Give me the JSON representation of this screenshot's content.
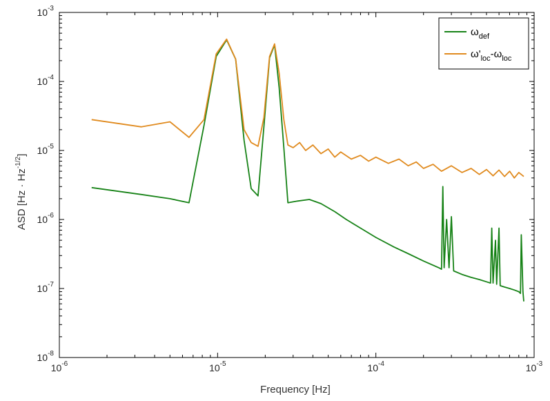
{
  "chart_data": {
    "type": "line",
    "xlabel": "Frequency [Hz]",
    "ylabel": {
      "main": "ASD [Hz · Hz",
      "exp": "-1/2",
      "close": "]"
    },
    "x_scale": "log",
    "y_scale": "log",
    "xlim": [
      1e-06,
      0.001
    ],
    "ylim": [
      1e-08,
      0.001
    ],
    "grid": false,
    "legend_position": "top-right",
    "x_ticks": [
      {
        "base": "10",
        "exp": "-6",
        "value": 1e-06
      },
      {
        "base": "10",
        "exp": "-5",
        "value": 1e-05
      },
      {
        "base": "10",
        "exp": "-4",
        "value": 0.0001
      },
      {
        "base": "10",
        "exp": "-3",
        "value": 0.001
      }
    ],
    "y_ticks": [
      {
        "base": "10",
        "exp": "-8",
        "value": 1e-08
      },
      {
        "base": "10",
        "exp": "-7",
        "value": 1e-07
      },
      {
        "base": "10",
        "exp": "-6",
        "value": 1e-06
      },
      {
        "base": "10",
        "exp": "-5",
        "value": 1e-05
      },
      {
        "base": "10",
        "exp": "-4",
        "value": 0.0001
      },
      {
        "base": "10",
        "exp": "-3",
        "value": 0.001
      }
    ],
    "series": [
      {
        "name": "ω_def",
        "legend": {
          "main": "ω",
          "sub": "def"
        },
        "color": "#168216",
        "points": [
          [
            1.6e-06,
            2.9e-06
          ],
          [
            3.3e-06,
            2.3e-06
          ],
          [
            5e-06,
            2e-06
          ],
          [
            6.6e-06,
            1.75e-06
          ],
          [
            8.2e-06,
            2.3e-05
          ],
          [
            9.8e-06,
            0.00023
          ],
          [
            1.14e-05,
            0.0004
          ],
          [
            1.3e-05,
            0.00021
          ],
          [
            1.47e-05,
            1.4e-05
          ],
          [
            1.63e-05,
            2.8e-06
          ],
          [
            1.8e-05,
            2.2e-06
          ],
          [
            1.96e-05,
            2.2e-05
          ],
          [
            2.13e-05,
            0.00022
          ],
          [
            2.29e-05,
            0.00034
          ],
          [
            2.45e-05,
            8e-05
          ],
          [
            2.62e-05,
            1.1e-05
          ],
          [
            2.78e-05,
            1.75e-06
          ],
          [
            3.2e-05,
            1.85e-06
          ],
          [
            3.8e-05,
            1.95e-06
          ],
          [
            4.5e-05,
            1.7e-06
          ],
          [
            5.5e-05,
            1.3e-06
          ],
          [
            6.5e-05,
            1e-06
          ],
          [
            8e-05,
            7.5e-07
          ],
          [
            0.0001,
            5.5e-07
          ],
          [
            0.00013,
            4e-07
          ],
          [
            0.00016,
            3.2e-07
          ],
          [
            0.0002,
            2.5e-07
          ],
          [
            0.00025,
            2e-07
          ],
          [
            0.00026,
            1.9e-07
          ],
          [
            0.000265,
            3e-06
          ],
          [
            0.00027,
            2e-07
          ],
          [
            0.00028,
            1e-06
          ],
          [
            0.00029,
            2e-07
          ],
          [
            0.0003,
            1.1e-06
          ],
          [
            0.00031,
            1.8e-07
          ],
          [
            0.00035,
            1.6e-07
          ],
          [
            0.0004,
            1.45e-07
          ],
          [
            0.00045,
            1.35e-07
          ],
          [
            0.0005,
            1.25e-07
          ],
          [
            0.00053,
            1.2e-07
          ],
          [
            0.00054,
            7.5e-07
          ],
          [
            0.00055,
            1.2e-07
          ],
          [
            0.00057,
            5e-07
          ],
          [
            0.00058,
            1.15e-07
          ],
          [
            0.0006,
            7.5e-07
          ],
          [
            0.00061,
            1.1e-07
          ],
          [
            0.00065,
            1.05e-07
          ],
          [
            0.0007,
            1e-07
          ],
          [
            0.00075,
            9.5e-08
          ],
          [
            0.0008,
            9e-08
          ],
          [
            0.00082,
            8.5e-08
          ],
          [
            0.00083,
            6e-07
          ],
          [
            0.00085,
            9e-08
          ],
          [
            0.00086,
            6.5e-08
          ]
        ]
      },
      {
        "name": "ω'_loc-ω_loc",
        "legend": {
          "main1": "ω'",
          "sub1": "loc",
          "mid": "-ω",
          "sub2": "loc"
        },
        "color": "#e08a1e",
        "points": [
          [
            1.6e-06,
            2.8e-05
          ],
          [
            3.3e-06,
            2.2e-05
          ],
          [
            5e-06,
            2.6e-05
          ],
          [
            6.6e-06,
            1.55e-05
          ],
          [
            8.2e-06,
            2.8e-05
          ],
          [
            9.8e-06,
            0.00025
          ],
          [
            1.14e-05,
            0.00041
          ],
          [
            1.3e-05,
            0.00021
          ],
          [
            1.47e-05,
            2e-05
          ],
          [
            1.63e-05,
            1.3e-05
          ],
          [
            1.8e-05,
            1.15e-05
          ],
          [
            1.96e-05,
            3e-05
          ],
          [
            2.13e-05,
            0.00023
          ],
          [
            2.29e-05,
            0.00035
          ],
          [
            2.45e-05,
            0.00013
          ],
          [
            2.62e-05,
            2.8e-05
          ],
          [
            2.78e-05,
            1.2e-05
          ],
          [
            3e-05,
            1.1e-05
          ],
          [
            3.3e-05,
            1.3e-05
          ],
          [
            3.6e-05,
            1e-05
          ],
          [
            4e-05,
            1.2e-05
          ],
          [
            4.5e-05,
            9e-06
          ],
          [
            5e-05,
            1.05e-05
          ],
          [
            5.5e-05,
            8e-06
          ],
          [
            6e-05,
            9.5e-06
          ],
          [
            7e-05,
            7.5e-06
          ],
          [
            8e-05,
            8.5e-06
          ],
          [
            9e-05,
            7e-06
          ],
          [
            0.0001,
            8e-06
          ],
          [
            0.00012,
            6.5e-06
          ],
          [
            0.00014,
            7.5e-06
          ],
          [
            0.00016,
            6e-06
          ],
          [
            0.00018,
            6.8e-06
          ],
          [
            0.0002,
            5.5e-06
          ],
          [
            0.00023,
            6.3e-06
          ],
          [
            0.00026,
            5e-06
          ],
          [
            0.0003,
            6e-06
          ],
          [
            0.00035,
            4.8e-06
          ],
          [
            0.0004,
            5.5e-06
          ],
          [
            0.00045,
            4.5e-06
          ],
          [
            0.0005,
            5.3e-06
          ],
          [
            0.00055,
            4.3e-06
          ],
          [
            0.0006,
            5.2e-06
          ],
          [
            0.00065,
            4.2e-06
          ],
          [
            0.0007,
            5e-06
          ],
          [
            0.00075,
            4e-06
          ],
          [
            0.0008,
            4.8e-06
          ],
          [
            0.00086,
            4.2e-06
          ]
        ]
      }
    ]
  }
}
